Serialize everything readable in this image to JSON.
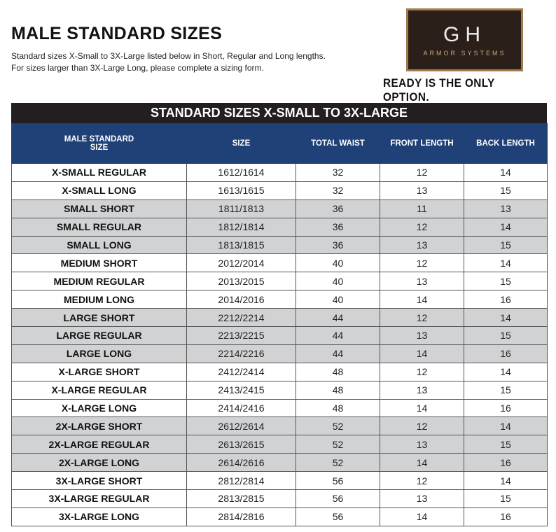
{
  "header": {
    "title": "MALE STANDARD SIZES",
    "subtitle_lines": [
      "Standard sizes X-Small to 3X-Large listed below in Short, Regular and Long lengths.",
      "For sizes larger than 3X-Large Long, please complete a sizing form."
    ]
  },
  "logo": {
    "mark": "GH",
    "name": "ARMOR SYSTEMS",
    "tagline": "READY IS THE ONLY OPTION."
  },
  "table": {
    "banner": "STANDARD SIZES X-SMALL TO 3X-LARGE",
    "columns": [
      "MALE STANDARD SIZE",
      "SIZE",
      "TOTAL WAIST",
      "FRONT LENGTH",
      "BACK LENGTH"
    ],
    "rows": [
      [
        "X-SMALL REGULAR",
        "1612/1614",
        32,
        12,
        14
      ],
      [
        "X-SMALL LONG",
        "1613/1615",
        32,
        13,
        15
      ],
      [
        "SMALL SHORT",
        "1811/1813",
        36,
        11,
        13
      ],
      [
        "SMALL REGULAR",
        "1812/1814",
        36,
        12,
        14
      ],
      [
        "SMALL LONG",
        "1813/1815",
        36,
        13,
        15
      ],
      [
        "MEDIUM SHORT",
        "2012/2014",
        40,
        12,
        14
      ],
      [
        "MEDIUM REGULAR",
        "2013/2015",
        40,
        13,
        15
      ],
      [
        "MEDIUM LONG",
        "2014/2016",
        40,
        14,
        16
      ],
      [
        "LARGE SHORT",
        "2212/2214",
        44,
        12,
        14
      ],
      [
        "LARGE REGULAR",
        "2213/2215",
        44,
        13,
        15
      ],
      [
        "LARGE LONG",
        "2214/2216",
        44,
        14,
        16
      ],
      [
        "X-LARGE SHORT",
        "2412/2414",
        48,
        12,
        14
      ],
      [
        "X-LARGE REGULAR",
        "2413/2415",
        48,
        13,
        15
      ],
      [
        "X-LARGE LONG",
        "2414/2416",
        48,
        14,
        16
      ],
      [
        "2X-LARGE SHORT",
        "2612/2614",
        52,
        12,
        14
      ],
      [
        "2X-LARGE REGULAR",
        "2613/2615",
        52,
        13,
        15
      ],
      [
        "2X-LARGE LONG",
        "2614/2616",
        52,
        14,
        16
      ],
      [
        "3X-LARGE SHORT",
        "2812/2814",
        56,
        12,
        14
      ],
      [
        "3X-LARGE REGULAR",
        "2813/2815",
        56,
        13,
        15
      ],
      [
        "3X-LARGE LONG",
        "2814/2816",
        56,
        14,
        16
      ]
    ]
  }
}
